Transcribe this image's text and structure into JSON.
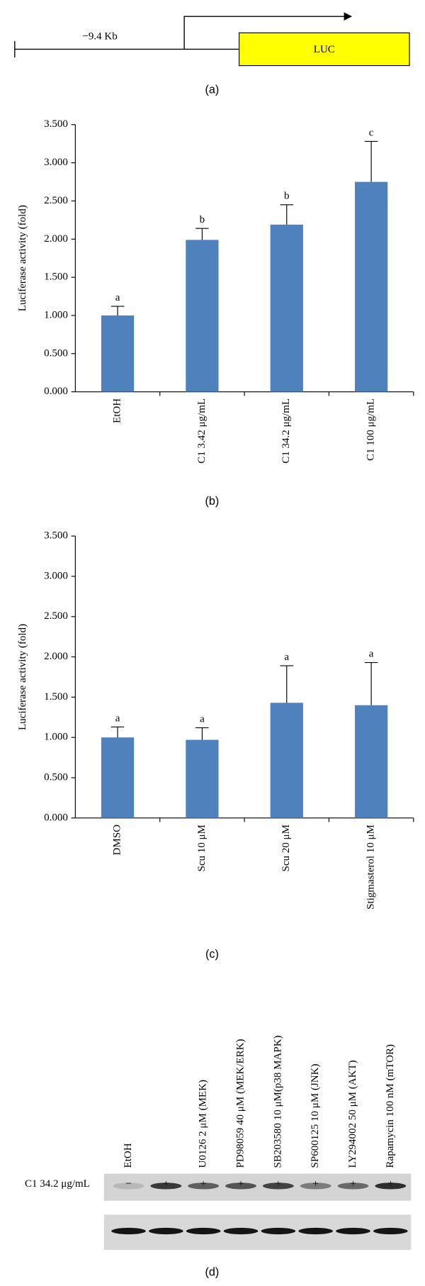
{
  "panel_a": {
    "distance": "−9.4 Kb",
    "gene": "LUC",
    "label": "(a)"
  },
  "chart_data": [
    {
      "type": "bar",
      "label": "(b)",
      "y_label": "Luciferase activity (fold)",
      "color": "#4f81bd",
      "categories": [
        "EtOH",
        "C1 3.42 μg/mL",
        "C1 34.2 μg/mL",
        "C1 100 μg/mL"
      ],
      "values": [
        1.0,
        1.99,
        2.19,
        2.75
      ],
      "errors": [
        0.12,
        0.15,
        0.26,
        0.53
      ],
      "annotations": [
        "a",
        "b",
        "b",
        "c"
      ],
      "ylim": [
        0,
        3.5
      ],
      "yticks": [
        {
          "value": 0,
          "label": "0.000"
        },
        {
          "value": 0.5,
          "label": "0.500"
        },
        {
          "value": 1,
          "label": "1.000"
        },
        {
          "value": 1.5,
          "label": "1.500"
        },
        {
          "value": 2,
          "label": "2.000"
        },
        {
          "value": 2.5,
          "label": "2.500"
        },
        {
          "value": 3,
          "label": "3.000"
        },
        {
          "value": 3.5,
          "label": "3.500"
        }
      ]
    },
    {
      "type": "bar",
      "label": "(c)",
      "y_label": "Luciferase activity (fold)",
      "color": "#4f81bd",
      "categories": [
        "DMSO",
        "Scu 10 μM",
        "Scu 20 μM",
        "Stigmasterol 10 μM"
      ],
      "values": [
        1.0,
        0.97,
        1.43,
        1.4
      ],
      "errors": [
        0.13,
        0.15,
        0.46,
        0.53
      ],
      "annotations": [
        "a",
        "a",
        "a",
        "a"
      ],
      "ylim": [
        0,
        3.5
      ],
      "yticks": [
        {
          "value": 0,
          "label": "0.000"
        },
        {
          "value": 0.5,
          "label": "0.500"
        },
        {
          "value": 1,
          "label": "1.000"
        },
        {
          "value": 1.5,
          "label": "1.500"
        },
        {
          "value": 2,
          "label": "2.000"
        },
        {
          "value": 2.5,
          "label": "2.500"
        },
        {
          "value": 3,
          "label": "3.000"
        },
        {
          "value": 3.5,
          "label": "3.500"
        }
      ]
    }
  ],
  "panel_d": {
    "treatment": "C1 34.2 μg/mL",
    "label": "(d)",
    "lanes": [
      "EtOH",
      null,
      "U0126 2 μM (MEK)",
      "PD98059 40 μM (MEK/ERK)",
      "SB203580 10 μM(p38 MAPK)",
      "SP600125 10 μM (JNK)",
      "LY294002 50 μM (AKT)",
      "Rapamycin 100 nM (mTOR)"
    ],
    "signs": [
      "−",
      "+",
      "+",
      "+",
      "+",
      "+",
      "+",
      "+"
    ]
  }
}
